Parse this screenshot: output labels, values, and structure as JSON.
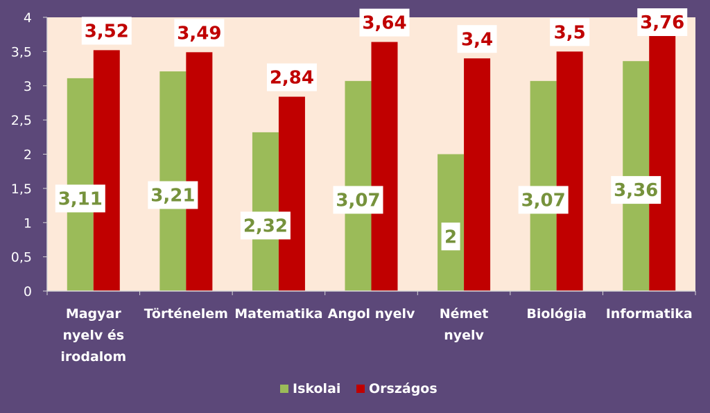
{
  "chart_data": {
    "type": "bar",
    "categories": [
      "Magyar nyelv és irodalom",
      "Történelem",
      "Matematika",
      "Angol nyelv",
      "Német nyelv",
      "Biológia",
      "Informatika"
    ],
    "category_lines": [
      [
        "Magyar",
        "nyelv és",
        "irodalom"
      ],
      [
        "Történelem"
      ],
      [
        "Matematika"
      ],
      [
        "Angol nyelv"
      ],
      [
        "Német",
        "nyelv"
      ],
      [
        "Biológia"
      ],
      [
        "Informatika"
      ]
    ],
    "series": [
      {
        "name": "Iskolai",
        "values": [
          3.11,
          3.21,
          2.32,
          3.07,
          2,
          3.07,
          3.36
        ],
        "labels": [
          "3,11",
          "3,21",
          "2,32",
          "3,07",
          "2",
          "3,07",
          "3,36"
        ],
        "color": "#9bbb59",
        "label_color": "#76923c"
      },
      {
        "name": "Országos",
        "values": [
          3.52,
          3.49,
          2.84,
          3.64,
          3.4,
          3.5,
          3.76
        ],
        "labels": [
          "3,52",
          "3,49",
          "2,84",
          "3,64",
          "3,4",
          "3,5",
          "3,76"
        ],
        "color": "#c00000",
        "label_color": "#c00000"
      }
    ],
    "ylim": [
      0,
      4
    ],
    "yticks": [
      0,
      0.5,
      1,
      1.5,
      2,
      2.5,
      3,
      3.5,
      4
    ],
    "ytick_labels": [
      "0",
      "0,5",
      "1",
      "1,5",
      "2",
      "2,5",
      "3",
      "3,5",
      "4"
    ],
    "grid": false,
    "legend": "bottom",
    "plot_background": "#fde9d9",
    "page_background": "#5c4879"
  }
}
